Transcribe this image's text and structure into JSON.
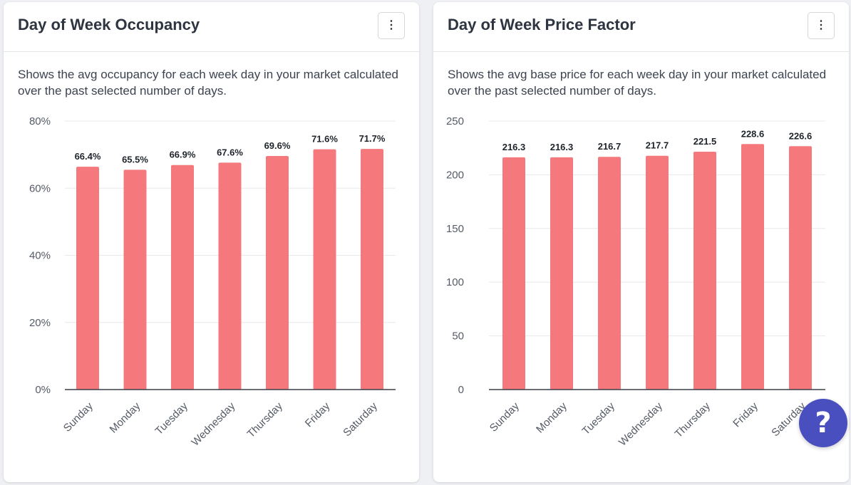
{
  "cards": [
    {
      "title": "Day of Week Occupancy",
      "description": "Shows the avg occupancy for each week day in your market calculated over the past selected number of days.",
      "menu_icon": "more-vertical-icon"
    },
    {
      "title": "Day of Week Price Factor",
      "description": "Shows the avg base price for each week day in your market calculated over the past selected number of days.",
      "menu_icon": "more-vertical-icon"
    }
  ],
  "help_icon": "question-icon",
  "bar_color": "#f5787c",
  "chart_data": [
    {
      "type": "bar",
      "categories": [
        "Sunday",
        "Monday",
        "Tuesday",
        "Wednesday",
        "Thursday",
        "Friday",
        "Saturday"
      ],
      "values": [
        66.4,
        65.5,
        66.9,
        67.6,
        69.6,
        71.6,
        71.7
      ],
      "value_labels": [
        "66.4%",
        "65.5%",
        "66.9%",
        "67.6%",
        "69.6%",
        "71.6%",
        "71.7%"
      ],
      "ylim": [
        0,
        80
      ],
      "yticks": [
        0,
        20,
        40,
        60,
        80
      ],
      "ytick_labels": [
        "0%",
        "20%",
        "40%",
        "60%",
        "80%"
      ],
      "grid": true,
      "legend": "none"
    },
    {
      "type": "bar",
      "categories": [
        "Sunday",
        "Monday",
        "Tuesday",
        "Wednesday",
        "Thursday",
        "Friday",
        "Saturday"
      ],
      "values": [
        216.3,
        216.3,
        216.7,
        217.7,
        221.5,
        228.6,
        226.6
      ],
      "value_labels": [
        "216.3",
        "216.3",
        "216.7",
        "217.7",
        "221.5",
        "228.6",
        "226.6"
      ],
      "ylim": [
        0,
        250
      ],
      "yticks": [
        0,
        50,
        100,
        150,
        200,
        250
      ],
      "ytick_labels": [
        "0",
        "50",
        "100",
        "150",
        "200",
        "250"
      ],
      "grid": true,
      "legend": "none"
    }
  ]
}
